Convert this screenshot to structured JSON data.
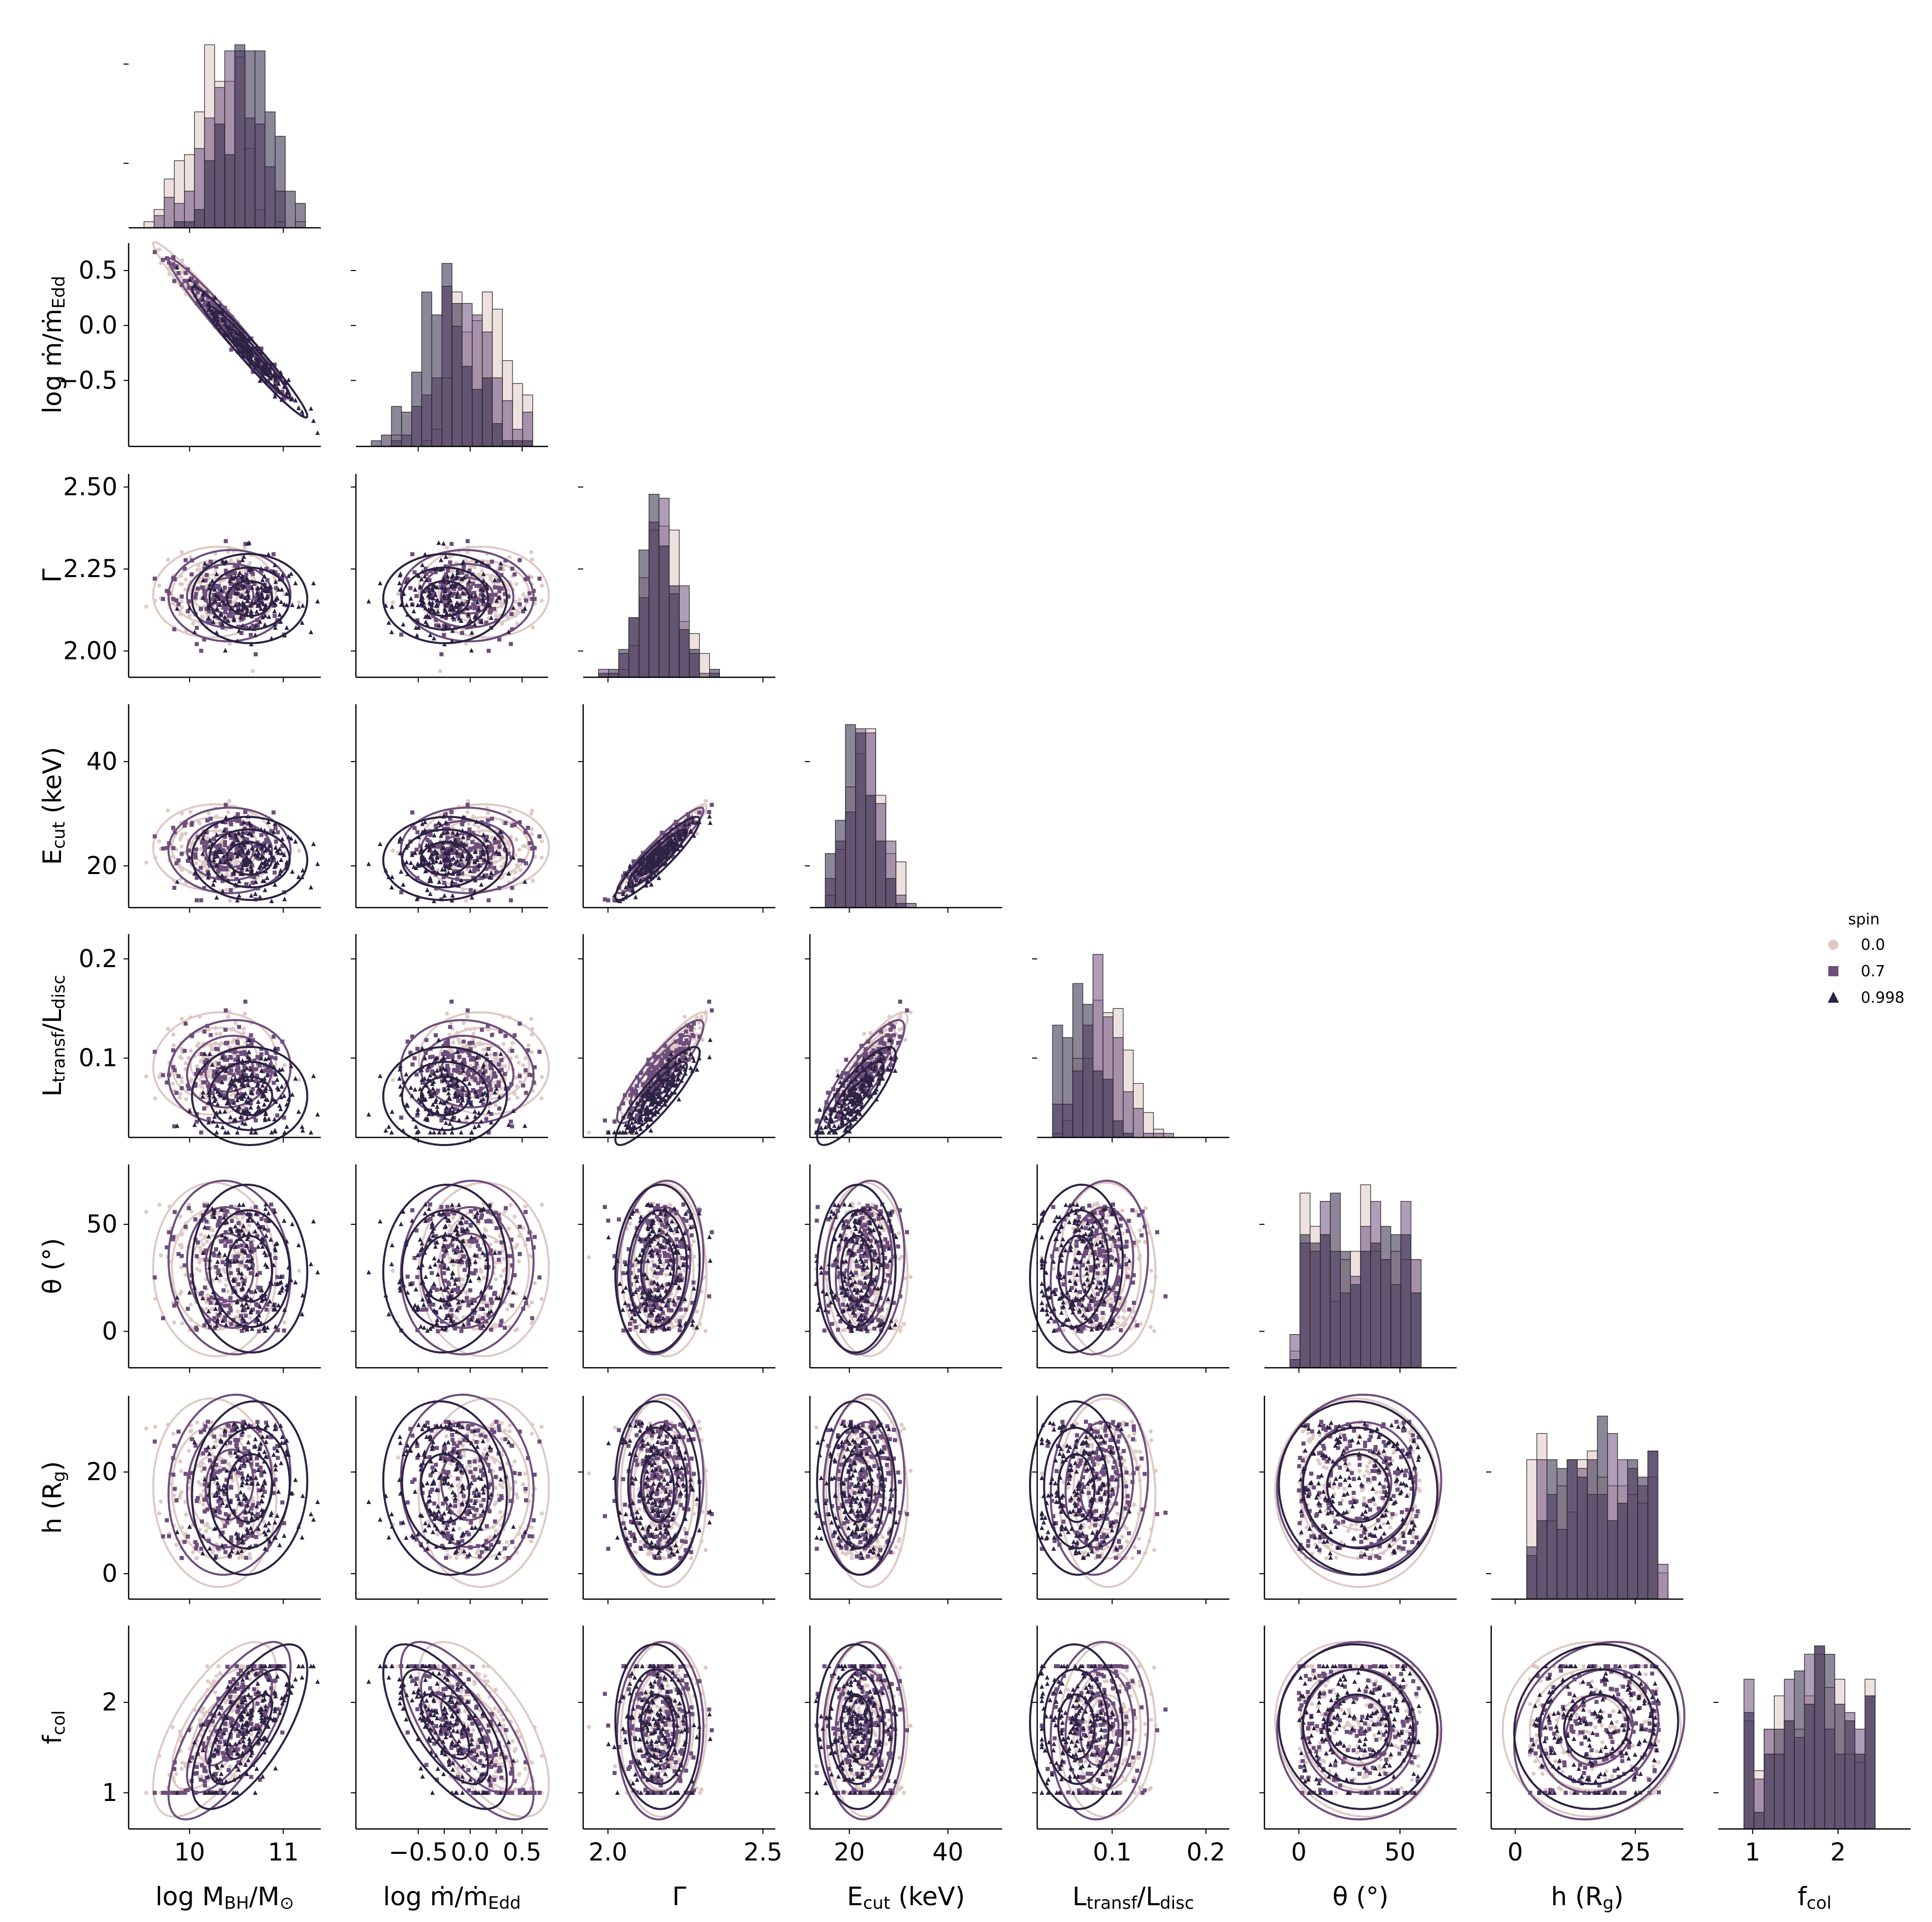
{
  "chart_data": {
    "type": "pairplot",
    "variables": [
      {
        "id": "logM",
        "label_main": "log M",
        "label_sub": "BH",
        "label_tail": "/M",
        "label_tail_sub": "⊙",
        "ticks": [
          10,
          11
        ],
        "tick_labels": [
          "10",
          "11"
        ],
        "range": [
          9.35,
          11.4
        ]
      },
      {
        "id": "mdot",
        "label_main": "log ṁ/ṁ",
        "label_sub": "Edd",
        "ticks": [
          -0.5,
          0.0,
          0.5
        ],
        "tick_labels": [
          "−0.5",
          "0.0",
          "0.5"
        ],
        "extra_x_ticks": [
          -0.25,
          0.25
        ],
        "extra_x_labels": [
          "0",
          "0"
        ],
        "range": [
          -1.1,
          0.75
        ]
      },
      {
        "id": "gamma",
        "label_main": "Γ",
        "ticks": [
          2.0,
          2.25,
          2.5
        ],
        "tick_labels": [
          "2.00",
          "2.25",
          "2.50"
        ],
        "x_ticks": [
          2.0,
          2.5
        ],
        "x_tick_labels": [
          "2.0",
          "2.5"
        ],
        "range": [
          1.92,
          2.54
        ]
      },
      {
        "id": "ecut",
        "label_main": "E",
        "label_sub": "cut",
        "label_tail": " (keV)",
        "ticks": [
          20,
          40
        ],
        "tick_labels": [
          "20",
          "40"
        ],
        "range": [
          12,
          51
        ]
      },
      {
        "id": "ltr",
        "label_main": "L",
        "label_sub": "transf",
        "label_tail": "/L",
        "label_tail_sub": "disc",
        "ticks": [
          0.1,
          0.2
        ],
        "tick_labels": [
          "0.1",
          "0.2"
        ],
        "range": [
          0.02,
          0.225
        ]
      },
      {
        "id": "theta",
        "label_main": "θ",
        "label_tail": " (°)",
        "ticks": [
          0,
          50
        ],
        "tick_labels": [
          "0",
          "50"
        ],
        "range": [
          -17,
          78
        ]
      },
      {
        "id": "h",
        "label_main": "h",
        "label_tail": " (R",
        "label_tail_sub": "g",
        "label_tail2": ")",
        "ticks": [
          0,
          20
        ],
        "x_ticks": [
          0,
          25
        ],
        "tick_labels": [
          "0",
          "20"
        ],
        "x_tick_labels": [
          "0",
          "25"
        ],
        "range": [
          -5,
          35
        ]
      },
      {
        "id": "fcol",
        "label_main": "f",
        "label_sub": "col",
        "ticks": [
          1,
          2
        ],
        "tick_labels": [
          "1",
          "2"
        ],
        "range": [
          0.6,
          2.85
        ]
      }
    ],
    "hue": {
      "title": "spin",
      "levels": [
        {
          "name": "0.0",
          "marker": "circle",
          "color": "#dfc9c4"
        },
        {
          "name": "0.7",
          "marker": "square",
          "color": "#6e4e7c"
        },
        {
          "name": "0.998",
          "marker": "triangle",
          "color": "#2c2243"
        }
      ]
    },
    "series_stats": {
      "0.0": {
        "logM_mean": 10.25,
        "mdot_mean": 0.15,
        "gamma_mean": 2.18,
        "ecut_mean": 23.5,
        "ltr_mean": 0.095,
        "theta_range": [
          0,
          60
        ],
        "h_range": [
          3,
          30
        ],
        "fcol_range": [
          1.0,
          2.4
        ]
      },
      "0.7": {
        "logM_mean": 10.45,
        "mdot_mean": -0.05,
        "gamma_mean": 2.17,
        "ecut_mean": 23,
        "ltr_mean": 0.085,
        "theta_range": [
          0,
          60
        ],
        "h_range": [
          3,
          30
        ],
        "fcol_range": [
          1.0,
          2.4
        ]
      },
      "0.998": {
        "logM_mean": 10.6,
        "mdot_mean": -0.2,
        "gamma_mean": 2.16,
        "ecut_mean": 21.5,
        "ltr_mean": 0.06,
        "theta_range": [
          0,
          60
        ],
        "h_range": [
          3,
          30
        ],
        "fcol_range": [
          1.0,
          2.4
        ]
      }
    },
    "diag": "histogram",
    "lower": "scatter+kde",
    "legend_position": "right"
  }
}
